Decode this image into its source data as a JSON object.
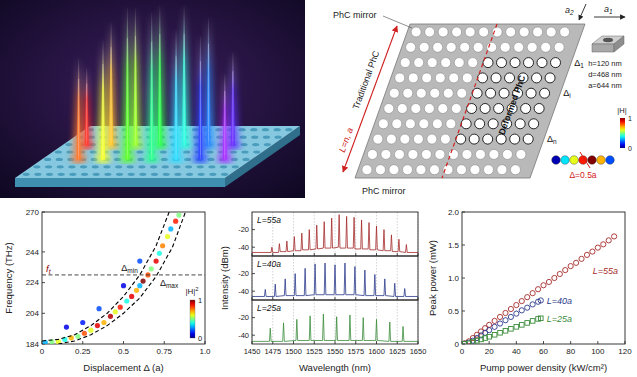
{
  "diagram": {
    "mirror_labels": [
      "PhC mirror",
      "PhC mirror"
    ],
    "vectors": [
      {
        "text": "a",
        "sub": "1"
      },
      {
        "text": "a",
        "sub": "2"
      }
    ],
    "traditional": "Traditional PhC",
    "length": "L=n, a",
    "deformed": "Deformed PhC",
    "deltas": [
      {
        "text": "Δ",
        "sub": "1"
      },
      {
        "text": "Δ",
        "sub": "i"
      },
      {
        "text": "Δ",
        "sub": "n"
      }
    ],
    "unit_cell": [
      "h=120 nm",
      "d=468 nm",
      "a=644 nm"
    ],
    "field_colorbar": {
      "range": [
        0,
        1
      ],
      "ticks": [
        0,
        1
      ],
      "label": "|H|"
    },
    "mode_label": "Δ=0.5a"
  },
  "chart_data": [
    {
      "type": "scatter",
      "x_label": "Displacement Δ (a)",
      "y_label": "Frequency (THz)",
      "xlim": [
        0,
        1
      ],
      "ylim": [
        184,
        270
      ],
      "xticks": [
        0,
        0.25,
        0.5,
        0.75,
        {
          "value": 1,
          "label": "1.0"
        }
      ],
      "yticks": [
        184,
        204,
        224,
        244,
        270
      ],
      "series": [
        {
          "type": "scatter",
          "marker": "circle",
          "x": [
            0.02,
            0.06,
            0.1,
            0.14,
            0.18,
            0.22,
            0.26,
            0.3,
            0.34,
            0.38,
            0.42,
            0.45,
            0.48,
            0.52,
            0.55,
            0.58,
            0.6,
            0.62,
            0.65,
            0.67,
            0.7,
            0.72,
            0.74,
            0.77,
            0.79,
            0.82,
            0.84,
            0.15,
            0.25,
            0.35,
            0.5,
            0.6
          ],
          "values": [
            185,
            185.5,
            185.5,
            187,
            188,
            189,
            191,
            193,
            196,
            198,
            202,
            205,
            208,
            212,
            215,
            219,
            222,
            225,
            229,
            233,
            238,
            243,
            248,
            254,
            259,
            264,
            268,
            195,
            198,
            207,
            222,
            238
          ],
          "h2": [
            0.3,
            0.5,
            0.6,
            0.4,
            0.7,
            0.5,
            0.8,
            0.6,
            0.9,
            0.7,
            0.95,
            0.6,
            0.85,
            0.4,
            0.9,
            0.7,
            0.3,
            1,
            0.8,
            0.5,
            0.9,
            0.4,
            0.75,
            0.6,
            0.3,
            0.85,
            0.5,
            0.1,
            0.15,
            0.2,
            0.1,
            0.2
          ]
        },
        {
          "type": "line",
          "line_style": "dashed",
          "color": "#000000",
          "x": [
            0,
            0.1,
            0.2,
            0.3,
            0.4,
            0.5,
            0.6,
            0.7,
            0.78
          ],
          "values": [
            186,
            187,
            190,
            196,
            204,
            215,
            229,
            248,
            270
          ]
        },
        {
          "type": "line",
          "line_style": "dashed",
          "color": "#000000",
          "x": [
            0.1,
            0.2,
            0.3,
            0.4,
            0.5,
            0.6,
            0.7,
            0.8,
            0.88
          ],
          "values": [
            184,
            186,
            190,
            196,
            204,
            214,
            228,
            247,
            270
          ]
        }
      ],
      "threshold": {
        "value": 229,
        "label": {
          "text": "f",
          "sub": "t"
        }
      },
      "annotations": [
        {
          "text": "Δ",
          "sub": "min"
        },
        {
          "text": "Δ",
          "sub": "max"
        }
      ],
      "colorbar": {
        "range": [
          0,
          1
        ],
        "ticks": [
          0,
          1
        ],
        "label": {
          "text": "|H|",
          "sup": "2"
        }
      }
    },
    {
      "type": "line",
      "xlim": [
        1450,
        1650
      ],
      "ylim": [
        -50,
        0
      ],
      "xticks": [
        1450,
        1475,
        1500,
        1525,
        1550,
        1575,
        1600,
        1625,
        1650
      ],
      "yticks": [
        -40,
        -20
      ],
      "grid": true,
      "tick_labels": "y",
      "series": [
        {
          "name": "L=55a",
          "color": "#a52a2a",
          "x": [
            1450,
            1473,
            1474,
            1475,
            1482,
            1483,
            1484,
            1491,
            1492,
            1493,
            1500,
            1501,
            1502,
            1509,
            1510,
            1511,
            1518,
            1519,
            1520,
            1527,
            1528,
            1529,
            1536,
            1537,
            1538,
            1545,
            1546,
            1547,
            1554,
            1555,
            1556,
            1563,
            1564,
            1565,
            1572,
            1573,
            1574,
            1581,
            1582,
            1583,
            1590,
            1591,
            1592,
            1599,
            1600,
            1601,
            1608,
            1609,
            1610,
            1617,
            1618,
            1619,
            1626,
            1627,
            1628,
            1635,
            1636,
            1637,
            1650
          ],
          "values": [
            -46,
            -46,
            -40,
            -46,
            -46,
            -36,
            -45,
            -45,
            -33,
            -45,
            -44,
            -28,
            -44,
            -44,
            -24,
            -43,
            -43,
            -20,
            -43,
            -42,
            -15,
            -42,
            -41,
            -11,
            -41,
            -41,
            -7,
            -41,
            -40,
            -3,
            -41,
            -41,
            -5,
            -41,
            -41,
            -6,
            -42,
            -42,
            -9,
            -42,
            -42,
            -12,
            -43,
            -43,
            -16,
            -43,
            -44,
            -20,
            -44,
            -44,
            -26,
            -45,
            -45,
            -31,
            -45,
            -46,
            -37,
            -46,
            -46
          ]
        }
      ]
    },
    {
      "type": "line",
      "y_label": "Intensity (dBm)",
      "xlim": [
        1450,
        1650
      ],
      "ylim": [
        -50,
        0
      ],
      "xticks": [
        1450,
        1475,
        1500,
        1525,
        1550,
        1575,
        1600,
        1625,
        1650
      ],
      "yticks": [
        -40,
        -20
      ],
      "grid": true,
      "tick_labels": "y",
      "series": [
        {
          "name": "L=40a",
          "color": "#2b3a8c",
          "x": [
            1450,
            1465,
            1466,
            1467,
            1477,
            1478,
            1479,
            1489,
            1490,
            1491,
            1501,
            1502,
            1503,
            1513,
            1514,
            1515,
            1525,
            1526,
            1527,
            1537,
            1538,
            1539,
            1549,
            1550,
            1551,
            1561,
            1562,
            1563,
            1573,
            1574,
            1575,
            1585,
            1586,
            1587,
            1597,
            1598,
            1599,
            1609,
            1610,
            1611,
            1621,
            1622,
            1623,
            1633,
            1634,
            1635,
            1650
          ],
          "values": [
            -46,
            -46,
            -38,
            -46,
            -46,
            -32,
            -46,
            -45,
            -26,
            -45,
            -45,
            -20,
            -45,
            -45,
            -14,
            -45,
            -44,
            -9,
            -44,
            -44,
            -8,
            -44,
            -44,
            -10,
            -44,
            -44,
            -8,
            -44,
            -44,
            -12,
            -44,
            -45,
            -16,
            -45,
            -45,
            -21,
            -45,
            -45,
            -26,
            -45,
            -46,
            -31,
            -46,
            -46,
            -37,
            -46,
            -46
          ]
        }
      ]
    },
    {
      "type": "line",
      "x_label": "Wavelength (nm)",
      "xlim": [
        1450,
        1650
      ],
      "ylim": [
        -50,
        0
      ],
      "xticks": [
        1450,
        1475,
        1500,
        1525,
        1550,
        1575,
        1600,
        1625,
        1650
      ],
      "yticks": [
        -40,
        -20
      ],
      "grid": true,
      "series": [
        {
          "name": "L=25a",
          "color": "#3a8c3a",
          "x": [
            1450,
            1471,
            1472,
            1473,
            1487,
            1488,
            1489,
            1503,
            1504,
            1505,
            1519,
            1520,
            1521,
            1535,
            1536,
            1537,
            1551,
            1552,
            1553,
            1567,
            1568,
            1569,
            1583,
            1584,
            1585,
            1599,
            1600,
            1601,
            1615,
            1616,
            1617,
            1631,
            1632,
            1633,
            1650
          ],
          "values": [
            -47,
            -47,
            -32,
            -47,
            -47,
            -26,
            -47,
            -46,
            -22,
            -46,
            -46,
            -18,
            -46,
            -46,
            -16,
            -46,
            -46,
            -19,
            -46,
            -46,
            -17,
            -46,
            -46,
            -20,
            -46,
            -46,
            -22,
            -46,
            -47,
            -25,
            -47,
            -47,
            -30,
            -47,
            -47
          ]
        }
      ]
    },
    {
      "type": "scatter",
      "x_label": "Pump power density (kW/cm²)",
      "y_label": "Peak power (mW)",
      "xlim": [
        0,
        120
      ],
      "ylim": [
        0,
        2
      ],
      "xticks": [
        0,
        20,
        40,
        60,
        80,
        100,
        120
      ],
      "yticks": [
        0,
        0.5,
        {
          "value": 1,
          "label": "1.0"
        },
        1.5,
        {
          "value": 2,
          "label": "2.0"
        }
      ],
      "series": [
        {
          "name": "L=55a",
          "color": "#a52a2a",
          "marker": "circle",
          "x": [
            2,
            5,
            8,
            11,
            14,
            17,
            20,
            24,
            28,
            32,
            36,
            40,
            44,
            48,
            52,
            56,
            60,
            64,
            68,
            72,
            76,
            80,
            84,
            88,
            92,
            96,
            100,
            104,
            108,
            112
          ],
          "values": [
            0.01,
            0.04,
            0.09,
            0.14,
            0.19,
            0.24,
            0.29,
            0.35,
            0.41,
            0.47,
            0.53,
            0.59,
            0.65,
            0.71,
            0.77,
            0.83,
            0.89,
            0.94,
            1,
            1.06,
            1.12,
            1.18,
            1.23,
            1.29,
            1.35,
            1.4,
            1.46,
            1.51,
            1.57,
            1.63
          ]
        },
        {
          "name": "L=40a",
          "color": "#2b3a8c",
          "marker": "circle",
          "x": [
            2,
            5,
            8,
            11,
            14,
            17,
            20,
            24,
            28,
            32,
            36,
            40,
            44,
            48,
            52,
            56,
            58
          ],
          "values": [
            0.005,
            0.02,
            0.05,
            0.09,
            0.13,
            0.17,
            0.21,
            0.26,
            0.31,
            0.36,
            0.41,
            0.46,
            0.51,
            0.55,
            0.6,
            0.64,
            0.66
          ]
        },
        {
          "name": "L=25a",
          "color": "#3a8c3a",
          "marker": "square",
          "x": [
            2,
            5,
            8,
            11,
            14,
            17,
            20,
            24,
            28,
            32,
            36,
            40,
            44,
            48,
            52,
            56,
            58
          ],
          "values": [
            0.003,
            0.01,
            0.03,
            0.05,
            0.07,
            0.09,
            0.11,
            0.14,
            0.17,
            0.2,
            0.23,
            0.26,
            0.29,
            0.32,
            0.35,
            0.38,
            0.39
          ]
        }
      ]
    }
  ]
}
